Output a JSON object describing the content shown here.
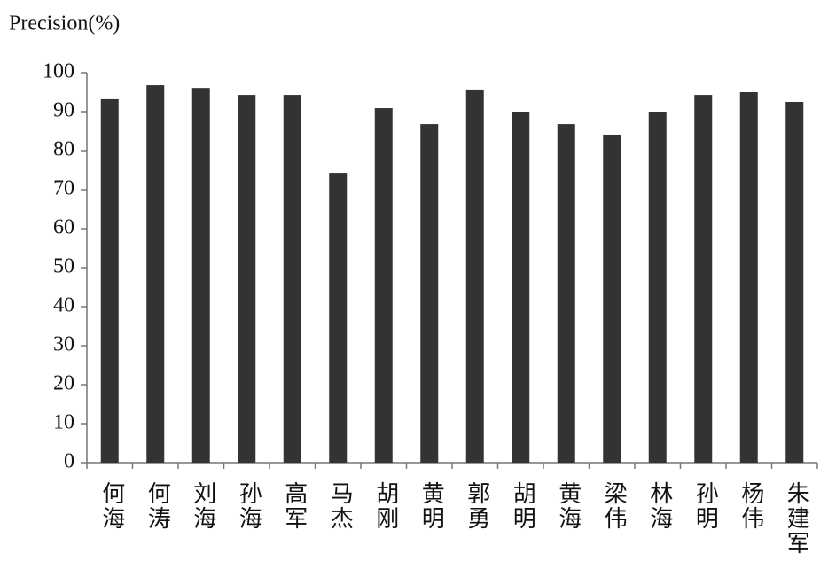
{
  "chart_data": {
    "type": "bar",
    "y_label": "Precision(%)",
    "categories": [
      "何海",
      "何涛",
      "刘海",
      "孙海",
      "高军",
      "马杰",
      "胡刚",
      "黄明",
      "郭勇",
      "胡明",
      "黄海",
      "梁伟",
      "林海",
      "孙明",
      "杨伟",
      "朱建军"
    ],
    "values": [
      93.2,
      96.8,
      96.1,
      94.3,
      94.3,
      74.3,
      90.9,
      86.8,
      95.7,
      90,
      86.8,
      84.1,
      90,
      94.3,
      95,
      92.5
    ],
    "color": "#333333",
    "ylim": [
      0,
      100
    ],
    "yticks": [
      0,
      10,
      20,
      30,
      40,
      50,
      60,
      70,
      80,
      90,
      100
    ],
    "grid": false
  }
}
